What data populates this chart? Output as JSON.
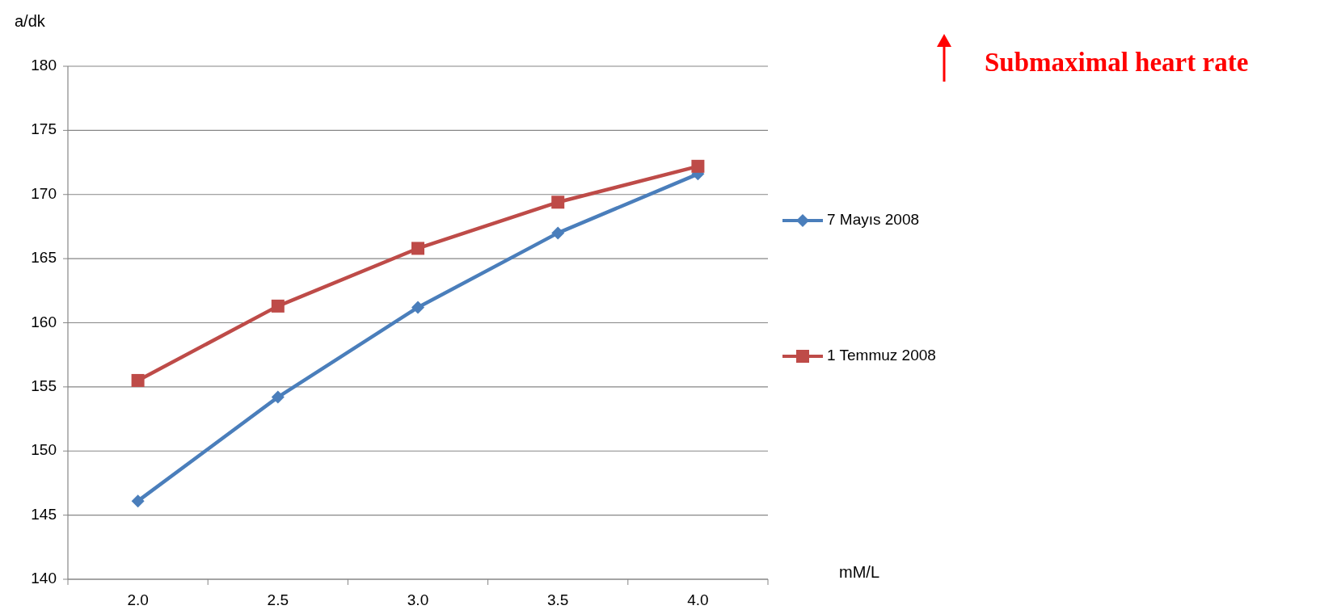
{
  "chart_data": {
    "type": "line",
    "annotations": [
      "Submaximal heart rate"
    ],
    "ylabel": "a/dk",
    "xlabel": "mM/L",
    "categories": [
      "2.0",
      "2.5",
      "3.0",
      "3.5",
      "4.0"
    ],
    "series": [
      {
        "name": "7 Mayıs 2008",
        "color": "#4a7ebb",
        "values": [
          146.1,
          154.2,
          161.2,
          167.0,
          171.6
        ],
        "marker": "diamond"
      },
      {
        "name": "1 Temmuz 2008",
        "color": "#be4b48",
        "values": [
          155.5,
          161.3,
          165.8,
          169.4,
          172.2
        ],
        "marker": "square"
      }
    ],
    "ylim": [
      140,
      180
    ],
    "yticks": [
      140,
      145,
      150,
      155,
      160,
      165,
      170,
      175,
      180
    ],
    "grid": "y",
    "legend": "right"
  }
}
